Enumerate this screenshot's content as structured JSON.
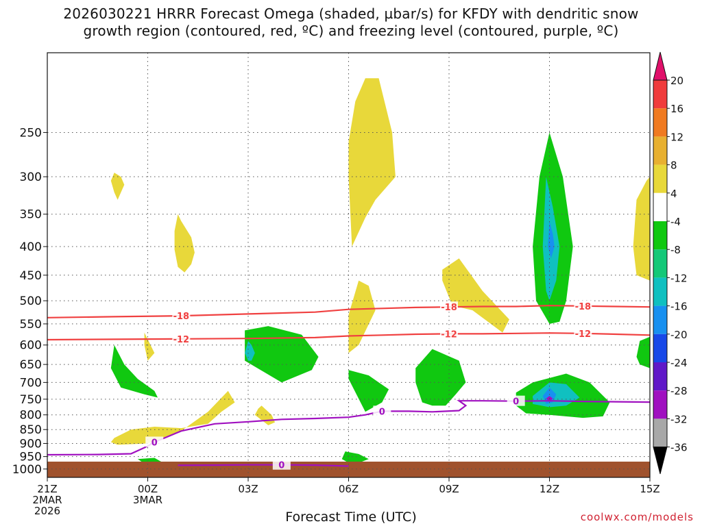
{
  "title": {
    "line1": "2026030221 HRRR Forecast Omega (shaded, µbar/s) for KFDY with dendritic snow",
    "line2": "growth region (contoured, red, ºC) and freezing level (contoured, purple, ºC)"
  },
  "xlabel": "Forecast Time (UTC)",
  "credit": "coolwx.com/models",
  "chart_data": {
    "type": "time-height cross section",
    "x_ticks": [
      {
        "hour": 0,
        "label": "21Z",
        "sub1": "2MAR",
        "sub2": "2026"
      },
      {
        "hour": 3,
        "label": "00Z",
        "sub1": "3MAR",
        "sub2": ""
      },
      {
        "hour": 6,
        "label": "03Z",
        "sub1": "",
        "sub2": ""
      },
      {
        "hour": 9,
        "label": "06Z",
        "sub1": "",
        "sub2": ""
      },
      {
        "hour": 12,
        "label": "09Z",
        "sub1": "",
        "sub2": ""
      },
      {
        "hour": 15,
        "label": "12Z",
        "sub1": "",
        "sub2": ""
      },
      {
        "hour": 18,
        "label": "15Z",
        "sub1": "",
        "sub2": ""
      }
    ],
    "xlim": [
      0,
      18
    ],
    "y_axis": {
      "unit": "hPa",
      "ylim": [
        1035,
        180
      ],
      "ticks": [
        250,
        300,
        350,
        400,
        450,
        500,
        550,
        600,
        650,
        700,
        750,
        800,
        850,
        900,
        950,
        1000
      ]
    },
    "colorbar": {
      "labels": [
        "20",
        "16",
        "12",
        "8",
        "4",
        "-4",
        "-8",
        "-12",
        "-16",
        "-20",
        "-24",
        "-28",
        "-32",
        "-36"
      ],
      "colors": [
        "#e0106a",
        "#f03c3c",
        "#f07a20",
        "#e8b030",
        "#e8d83a",
        "#ffffff",
        "#10c810",
        "#14c878",
        "#10c0c0",
        "#1890f0",
        "#1848e8",
        "#6018c8",
        "#a010c0",
        "#a8a8a8",
        "#000000"
      ]
    },
    "series": [
      {
        "name": "-18 °C isotherm",
        "color": "#f04040",
        "label": "-18",
        "x": [
          0,
          2,
          4,
          6,
          8,
          9,
          10,
          11,
          12,
          13,
          14,
          15,
          16,
          17,
          18
        ],
        "p": [
          536,
          534,
          532,
          528,
          524,
          518,
          516,
          514,
          513,
          512,
          512,
          510,
          511,
          512,
          513
        ]
      },
      {
        "name": "-12 °C isotherm",
        "color": "#f04040",
        "label": "-12",
        "x": [
          0,
          2,
          4,
          6,
          8,
          9,
          10,
          11,
          12,
          13,
          14,
          15,
          16,
          17,
          18
        ],
        "p": [
          587,
          586,
          585,
          584,
          582,
          578,
          576,
          574,
          573,
          573,
          572,
          571,
          572,
          574,
          576
        ]
      },
      {
        "name": "0 °C freezing level",
        "color": "#a010c0",
        "label": "0",
        "x": [
          0,
          1.5,
          2.5,
          3.0,
          3.2,
          3.5,
          4.0,
          5.0,
          6.0,
          7.0,
          8.0,
          9.0,
          9.5,
          10.0,
          10.8,
          11.5,
          12.3,
          12.5,
          12.3,
          13,
          14,
          15,
          16,
          17,
          18
        ],
        "p": [
          943,
          942,
          939,
          910,
          895,
          880,
          855,
          830,
          823,
          815,
          812,
          808,
          800,
          788,
          788,
          790,
          786,
          770,
          755,
          755,
          756,
          755,
          757,
          758,
          759
        ]
      },
      {
        "name": "0 °C freezing level (lower)",
        "color": "#a010c0",
        "label": "0",
        "x": [
          3.9,
          5,
          6,
          7,
          8,
          9
        ],
        "p": [
          985,
          984,
          983,
          983,
          984,
          988
        ]
      }
    ],
    "shaded_regions": [
      {
        "value": 6,
        "x": [
          2.0,
          2.2,
          2.3,
          2.2,
          2.1,
          2.0,
          1.9,
          2.0
        ],
        "p": [
          295,
          300,
          310,
          320,
          330,
          320,
          305,
          295
        ]
      },
      {
        "value": 6,
        "x": [
          3.9,
          4.0,
          4.3,
          4.4,
          4.3,
          4.1,
          3.9,
          3.8,
          3.8
        ],
        "p": [
          350,
          360,
          385,
          410,
          430,
          445,
          435,
          405,
          375
        ]
      },
      {
        "value": 6,
        "x": [
          2.9,
          3.2,
          3.0,
          2.9
        ],
        "p": [
          570,
          620,
          640,
          600
        ]
      },
      {
        "value": 6,
        "x": [
          2.0,
          2.5,
          3.2,
          4.0,
          4.8,
          5.2,
          5.6,
          5.4,
          4.8,
          4.0,
          3.0,
          2.1,
          1.9,
          2.0
        ],
        "p": [
          880,
          850,
          840,
          845,
          830,
          790,
          760,
          725,
          790,
          855,
          900,
          905,
          895,
          880
        ]
      },
      {
        "value": 6,
        "x": [
          9.1,
          9.5,
          9.8,
          10.4,
          10.3,
          9.9,
          9.5,
          9.2,
          9.0,
          9.0,
          9.1
        ],
        "p": [
          400,
          355,
          330,
          300,
          250,
          200,
          200,
          220,
          260,
          300,
          400
        ]
      },
      {
        "value": 6,
        "x": [
          9.0,
          9.3,
          9.8,
          9.6,
          9.3,
          9.0,
          9.0
        ],
        "p": [
          620,
          600,
          520,
          470,
          460,
          530,
          620
        ]
      },
      {
        "value": 6,
        "x": [
          11.8,
          12.3,
          13.0,
          13.8,
          13.6,
          12.7,
          12.1,
          11.8
        ],
        "p": [
          440,
          420,
          480,
          540,
          570,
          520,
          510,
          460
        ]
      },
      {
        "value": 6,
        "x": [
          14.8,
          15.1,
          15.0,
          14.7,
          14.7,
          14.8
        ],
        "p": [
          380,
          400,
          460,
          440,
          410,
          380
        ]
      },
      {
        "value": 6,
        "x": [
          17.6,
          17.9,
          18.0,
          18.0,
          17.6,
          17.5,
          17.6
        ],
        "p": [
          330,
          305,
          300,
          460,
          450,
          400,
          330
        ]
      },
      {
        "value": 6,
        "x": [
          6.4,
          6.7,
          6.8,
          6.6,
          6.2,
          6.3,
          6.4
        ],
        "p": [
          770,
          800,
          825,
          835,
          800,
          780,
          770
        ]
      },
      {
        "value": -6,
        "x": [
          15.0,
          15.4,
          15.7,
          15.5,
          15.3,
          15.0,
          14.6,
          14.5,
          14.7,
          15.0
        ],
        "p": [
          250,
          300,
          400,
          500,
          545,
          550,
          500,
          400,
          300,
          250
        ]
      },
      {
        "value": -6,
        "x": [
          2.0,
          2.3,
          2.7,
          3.2,
          3.3,
          2.9,
          2.2,
          1.9,
          2.0
        ],
        "p": [
          600,
          650,
          690,
          725,
          745,
          735,
          715,
          660,
          600
        ]
      },
      {
        "value": -6,
        "x": [
          5.9,
          6.6,
          7.6,
          8.1,
          7.9,
          7.0,
          5.9,
          5.9
        ],
        "p": [
          565,
          555,
          575,
          630,
          665,
          700,
          640,
          565
        ]
      },
      {
        "value": -6,
        "x": [
          9.0,
          9.6,
          9.9,
          10.2,
          10.0,
          9.5,
          9.0,
          9.0
        ],
        "p": [
          665,
          680,
          700,
          720,
          760,
          790,
          690,
          665
        ]
      },
      {
        "value": -6,
        "x": [
          11.0,
          11.5,
          12.3,
          12.5,
          12.2,
          11.9,
          11.5,
          11.2,
          11.0
        ],
        "p": [
          660,
          610,
          640,
          700,
          735,
          770,
          770,
          760,
          700
        ]
      },
      {
        "value": -6,
        "x": [
          14.0,
          14.5,
          15.5,
          16.2,
          16.8,
          16.6,
          16.0,
          15.0,
          14.3,
          14.0,
          14.0
        ],
        "p": [
          730,
          700,
          675,
          700,
          760,
          805,
          810,
          800,
          795,
          770,
          730
        ]
      },
      {
        "value": -6,
        "x": [
          17.7,
          18.0,
          18.0,
          17.7,
          17.6,
          17.7
        ],
        "p": [
          590,
          580,
          660,
          650,
          630,
          590
        ]
      },
      {
        "value": -6,
        "x": [
          8.9,
          9.3,
          9.6,
          9.4,
          9.0,
          8.8,
          8.9
        ],
        "p": [
          930,
          940,
          960,
          970,
          975,
          960,
          930
        ]
      },
      {
        "value": -6,
        "x": [
          2.7,
          3.2,
          3.4,
          3.2,
          2.9,
          2.7
        ],
        "p": [
          960,
          955,
          970,
          980,
          978,
          960
        ]
      },
      {
        "value": -14,
        "x": [
          14.9,
          15.1,
          15.3,
          15.2,
          15.0,
          14.9,
          14.8,
          14.9
        ],
        "p": [
          300,
          340,
          400,
          460,
          500,
          480,
          400,
          300
        ]
      },
      {
        "value": -14,
        "x": [
          6.0,
          6.1,
          6.2,
          6.1,
          6.0,
          5.9,
          6.0
        ],
        "p": [
          590,
          600,
          620,
          640,
          640,
          620,
          590
        ]
      },
      {
        "value": -14,
        "x": [
          14.5,
          15.0,
          15.5,
          15.9,
          15.5,
          15.0,
          14.5,
          14.5
        ],
        "p": [
          740,
          700,
          705,
          745,
          770,
          775,
          765,
          740
        ]
      },
      {
        "value": -18,
        "x": [
          15.0,
          15.1,
          15.15,
          15.05,
          14.95,
          15.0
        ],
        "p": [
          360,
          380,
          400,
          420,
          400,
          360
        ]
      },
      {
        "value": -18,
        "x": [
          14.8,
          15.0,
          15.2,
          15.1,
          14.9,
          14.8
        ],
        "p": [
          740,
          715,
          735,
          760,
          765,
          740
        ]
      },
      {
        "value": -28,
        "x": [
          14.9,
          15.0,
          15.1,
          15.0,
          14.9
        ],
        "p": [
          748,
          740,
          748,
          758,
          748
        ]
      }
    ]
  }
}
